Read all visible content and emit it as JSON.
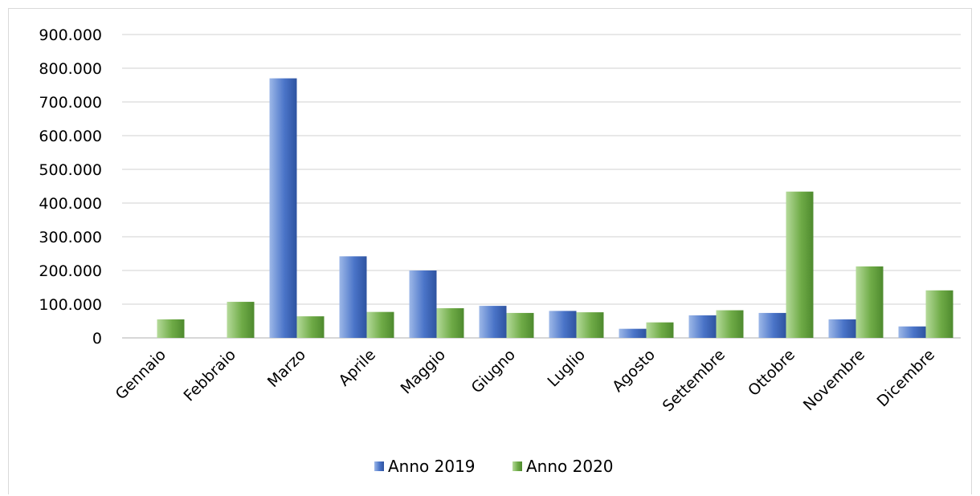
{
  "chart_data": {
    "type": "bar",
    "title": "",
    "xlabel": "",
    "ylabel": "",
    "categories": [
      "Gennaio",
      "Febbraio",
      "Marzo",
      "Aprile",
      "Maggio",
      "Giugno",
      "Luglio",
      "Agosto",
      "Settembre",
      "Ottobre",
      "Novembre",
      "Dicembre"
    ],
    "series": [
      {
        "name": "Anno 2019",
        "color": "#4472C4",
        "values": [
          0,
          0,
          770000,
          242000,
          200000,
          95000,
          80000,
          27000,
          67000,
          74000,
          55000,
          34000
        ]
      },
      {
        "name": "Anno 2020",
        "color": "#70AD47",
        "values": [
          55000,
          107000,
          64000,
          77000,
          88000,
          74000,
          76000,
          46000,
          82000,
          434000,
          212000,
          141000
        ]
      }
    ],
    "ylim": [
      0,
      900000
    ],
    "yticks": [
      "0",
      "100.000",
      "200.000",
      "300.000",
      "400.000",
      "500.000",
      "600.000",
      "700.000",
      "800.000",
      "900.000"
    ],
    "grid": true,
    "legend_position": "bottom"
  }
}
